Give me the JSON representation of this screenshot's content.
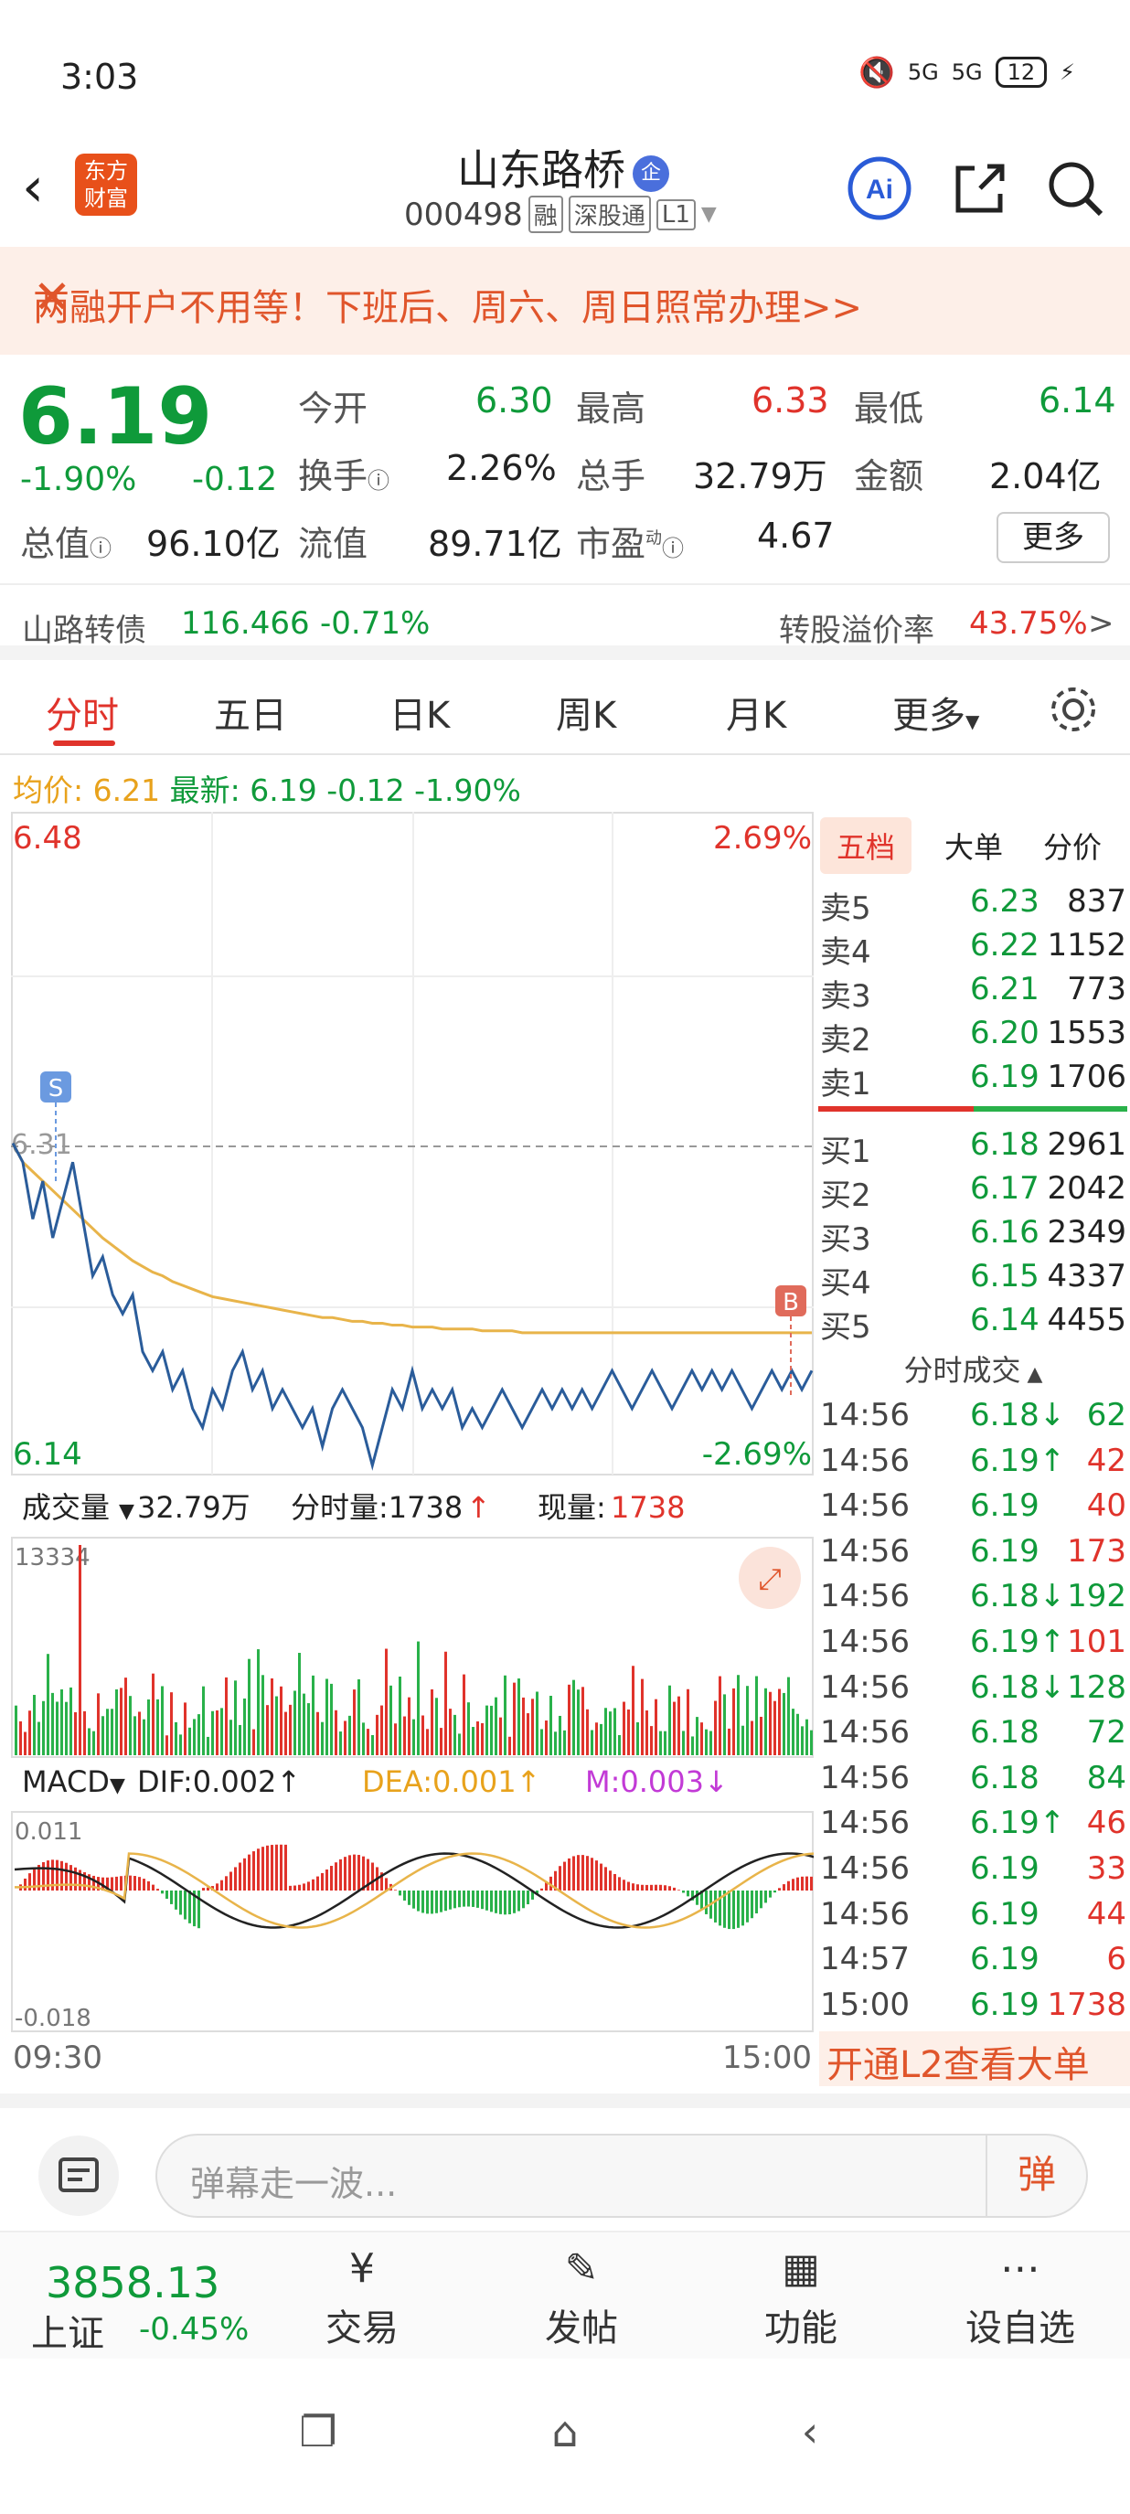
{
  "status": {
    "time": "3:03",
    "signal1": "5G",
    "signal2": "5G",
    "battery": "12"
  },
  "header": {
    "title": "山东路桥",
    "badge": "企",
    "code": "000498",
    "tags": [
      "融",
      "深股通",
      "L1"
    ],
    "logo_text": [
      "东方",
      "财富"
    ],
    "ai_label": "Ai"
  },
  "banner": {
    "text": "两融开户不用等！下班后、周六、周日照常办理>>"
  },
  "quote": {
    "price": "6.19",
    "change_pct": "-1.90%",
    "change": "-0.12",
    "open_label": "今开",
    "open": "6.30",
    "high_label": "最高",
    "high": "6.33",
    "low_label": "最低",
    "low": "6.14",
    "turnover_label": "换手",
    "turnover": "2.26%",
    "volume_label": "总手",
    "volume": "32.79万",
    "amount_label": "金额",
    "amount": "2.04亿",
    "mktcap_label": "总值",
    "mktcap": "96.10亿",
    "float_label": "流值",
    "float": "89.71亿",
    "pe_label": "市盈",
    "pe_sup": "动",
    "pe": "4.67",
    "more": "更多"
  },
  "bond": {
    "name": "山路转债",
    "price": "116.466",
    "change": "-0.71%",
    "premium_label": "转股溢价率",
    "premium": "43.75%",
    "arrow": ">"
  },
  "tabs": [
    "分时",
    "五日",
    "日K",
    "周K",
    "月K",
    "更多"
  ],
  "avgline": {
    "avg_label": "均价:",
    "avg": "6.21",
    "latest_label": "最新:",
    "latest": "6.19",
    "change": "-0.12",
    "pct": "-1.90%"
  },
  "chart_data": {
    "type": "line",
    "price_top": "6.48",
    "price_bottom": "6.14",
    "pct_top": "2.69%",
    "pct_bottom": "-2.69%",
    "ref_price": "6.31",
    "ylim": [
      6.14,
      6.48
    ],
    "x_start": "09:30",
    "x_end": "15:00",
    "price": [
      6.31,
      6.3,
      6.27,
      6.29,
      6.26,
      6.28,
      6.3,
      6.27,
      6.24,
      6.25,
      6.23,
      6.22,
      6.23,
      6.2,
      6.19,
      6.2,
      6.18,
      6.19,
      6.17,
      6.16,
      6.18,
      6.17,
      6.19,
      6.2,
      6.18,
      6.19,
      6.17,
      6.18,
      6.17,
      6.16,
      6.17,
      6.15,
      6.17,
      6.18,
      6.17,
      6.16,
      6.14,
      6.16,
      6.18,
      6.17,
      6.19,
      6.17,
      6.18,
      6.17,
      6.18,
      6.16,
      6.17,
      6.16,
      6.17,
      6.18,
      6.17,
      6.16,
      6.17,
      6.18,
      6.17,
      6.18,
      6.17,
      6.18,
      6.17,
      6.18,
      6.19,
      6.18,
      6.17,
      6.18,
      6.19,
      6.18,
      6.17,
      6.18,
      6.19,
      6.18,
      6.19,
      6.18,
      6.19,
      6.18,
      6.17,
      6.18,
      6.19,
      6.18,
      6.19,
      6.18,
      6.19
    ],
    "avg": [
      6.31,
      6.3,
      6.295,
      6.29,
      6.285,
      6.28,
      6.275,
      6.27,
      6.265,
      6.26,
      6.256,
      6.252,
      6.248,
      6.245,
      6.242,
      6.24,
      6.237,
      6.235,
      6.233,
      6.231,
      6.229,
      6.228,
      6.227,
      6.226,
      6.225,
      6.224,
      6.223,
      6.222,
      6.221,
      6.22,
      6.219,
      6.218,
      6.218,
      6.217,
      6.216,
      6.216,
      6.215,
      6.215,
      6.214,
      6.214,
      6.213,
      6.213,
      6.213,
      6.212,
      6.212,
      6.212,
      6.212,
      6.211,
      6.211,
      6.211,
      6.211,
      6.21,
      6.21,
      6.21,
      6.21,
      6.21,
      6.21,
      6.21,
      6.21,
      6.21,
      6.21,
      6.21,
      6.21,
      6.21,
      6.21,
      6.21,
      6.21,
      6.21,
      6.21,
      6.21,
      6.21,
      6.21,
      6.21,
      6.21,
      6.21,
      6.21,
      6.21,
      6.21,
      6.21,
      6.21,
      6.21
    ],
    "volume_label": "成交量",
    "volume_total": "32.79万",
    "tick_label": "分时量:1738",
    "tick_arrow": "↑",
    "now_label": "现量:",
    "now": "1738",
    "vol_max": "13334",
    "macd_label": "MACD",
    "dif": "DIF:0.002↑",
    "dea": "DEA:0.001↑",
    "m": "M:0.003↓",
    "macd_top": "0.011",
    "macd_bottom": "-0.018",
    "marker_s": "S",
    "marker_b": "B"
  },
  "orderbook": {
    "tabs": [
      "五档",
      "大单",
      "分价"
    ],
    "asks": [
      {
        "label": "卖5",
        "price": "6.23",
        "vol": "837"
      },
      {
        "label": "卖4",
        "price": "6.22",
        "vol": "1152"
      },
      {
        "label": "卖3",
        "price": "6.21",
        "vol": "773"
      },
      {
        "label": "卖2",
        "price": "6.20",
        "vol": "1553"
      },
      {
        "label": "卖1",
        "price": "6.19",
        "vol": "1706"
      }
    ],
    "bids": [
      {
        "label": "买1",
        "price": "6.18",
        "vol": "2961"
      },
      {
        "label": "买2",
        "price": "6.17",
        "vol": "2042"
      },
      {
        "label": "买3",
        "price": "6.16",
        "vol": "2349"
      },
      {
        "label": "买4",
        "price": "6.15",
        "vol": "4337"
      },
      {
        "label": "买5",
        "price": "6.14",
        "vol": "4455"
      }
    ],
    "trades_title": "分时成交",
    "trades": [
      {
        "t": "14:56",
        "p": "6.18↓",
        "v": "62",
        "c": "green"
      },
      {
        "t": "14:56",
        "p": "6.19↑",
        "v": "42",
        "c": "red"
      },
      {
        "t": "14:56",
        "p": "6.19",
        "v": "40",
        "c": "red"
      },
      {
        "t": "14:56",
        "p": "6.19",
        "v": "173",
        "c": "red"
      },
      {
        "t": "14:56",
        "p": "6.18↓",
        "v": "192",
        "c": "green"
      },
      {
        "t": "14:56",
        "p": "6.19↑",
        "v": "101",
        "c": "red"
      },
      {
        "t": "14:56",
        "p": "6.18↓",
        "v": "128",
        "c": "green"
      },
      {
        "t": "14:56",
        "p": "6.18",
        "v": "72",
        "c": "green"
      },
      {
        "t": "14:56",
        "p": "6.18",
        "v": "84",
        "c": "green"
      },
      {
        "t": "14:56",
        "p": "6.19↑",
        "v": "46",
        "c": "red"
      },
      {
        "t": "14:56",
        "p": "6.19",
        "v": "33",
        "c": "red"
      },
      {
        "t": "14:56",
        "p": "6.19",
        "v": "44",
        "c": "red"
      },
      {
        "t": "14:57",
        "p": "6.19",
        "v": "6",
        "c": "red"
      },
      {
        "t": "15:00",
        "p": "6.19",
        "v": "1738",
        "c": "red"
      }
    ],
    "l2": "开通L2查看大单"
  },
  "input": {
    "placeholder": "弹幕走一波...",
    "danmu": "弹"
  },
  "bottombar": {
    "index_value": "3858.13",
    "index_name": "上证",
    "index_change": "-0.45%",
    "trade": "交易",
    "post": "发帖",
    "func": "功能",
    "watch": "设自选"
  }
}
